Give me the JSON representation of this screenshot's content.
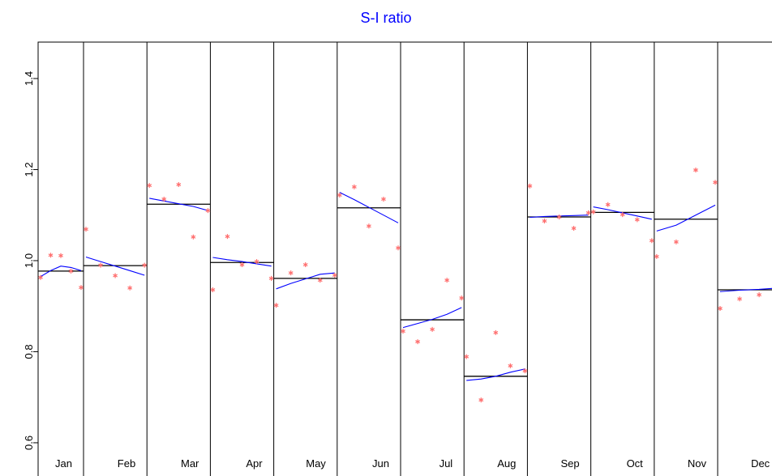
{
  "chart_data": {
    "type": "subseries",
    "title": "S-I ratio",
    "ylim": [
      0.527,
      1.48
    ],
    "yticks": [
      0.6,
      0.8,
      {
        "value": 1,
        "label": "1.0"
      },
      1.2,
      1.4
    ],
    "point_color": "#ff6f6f",
    "smooth_color": "#0000ff",
    "mean_color": "#000000",
    "title_color": "#0000ff",
    "months": [
      {
        "name": "Jan",
        "values": [
          0.963,
          1.012,
          1.011,
          0.977,
          0.941
        ],
        "smooth": [
          0.965,
          0.978,
          0.988,
          0.985,
          0.978
        ],
        "mean": 0.977
      },
      {
        "name": "Feb",
        "values": [
          1.069,
          0.99,
          0.967,
          0.94,
          0.99
        ],
        "smooth": [
          1.008,
          0.998,
          0.988,
          0.978,
          0.968
        ],
        "mean": 0.989
      },
      {
        "name": "Mar",
        "values": [
          1.165,
          1.135,
          1.167,
          1.052,
          1.11
        ],
        "smooth": [
          1.137,
          1.131,
          1.125,
          1.119,
          1.11
        ],
        "mean": 1.124
      },
      {
        "name": "Apr",
        "values": [
          0.936,
          1.053,
          0.991,
          0.998,
          0.961
        ],
        "smooth": [
          1.007,
          1.002,
          0.998,
          0.993,
          0.988
        ],
        "mean": 0.996
      },
      {
        "name": "May",
        "values": [
          0.902,
          0.973,
          0.991,
          0.957,
          0.968
        ],
        "smooth": [
          0.938,
          0.95,
          0.96,
          0.97,
          0.973
        ],
        "mean": 0.961
      },
      {
        "name": "Jun",
        "values": [
          1.144,
          1.162,
          1.076,
          1.135,
          1.028
        ],
        "smooth": [
          1.15,
          1.134,
          1.117,
          1.1,
          1.083
        ],
        "mean": 1.116
      },
      {
        "name": "Jul",
        "values": [
          0.845,
          0.822,
          0.849,
          0.957,
          0.918
        ],
        "smooth": [
          0.853,
          0.862,
          0.871,
          0.882,
          0.897
        ],
        "mean": 0.87
      },
      {
        "name": "Aug",
        "values": [
          0.789,
          0.694,
          0.842,
          0.769,
          0.758
        ],
        "smooth": [
          0.737,
          0.74,
          0.746,
          0.755,
          0.762
        ],
        "mean": 0.746
      },
      {
        "name": "Sep",
        "values": [
          1.164,
          1.087,
          1.096,
          1.071,
          1.105
        ],
        "smooth": [
          1.095,
          1.097,
          1.098,
          1.099,
          1.1
        ],
        "mean": 1.096
      },
      {
        "name": "Oct",
        "values": [
          1.107,
          1.123,
          1.101,
          1.09,
          1.044
        ],
        "smooth": [
          1.118,
          1.112,
          1.105,
          1.098,
          1.091
        ],
        "mean": 1.106
      },
      {
        "name": "Nov",
        "values": [
          1.009,
          1.041,
          1.199,
          1.172
        ],
        "smooth": [
          1.065,
          1.078,
          1.1,
          1.122
        ],
        "mean": 1.091
      },
      {
        "name": "Dec",
        "values": [
          0.895,
          0.916,
          0.925,
          0.936
        ],
        "smooth": [
          0.932,
          0.935,
          0.937,
          0.94
        ],
        "mean": 0.936
      }
    ]
  }
}
